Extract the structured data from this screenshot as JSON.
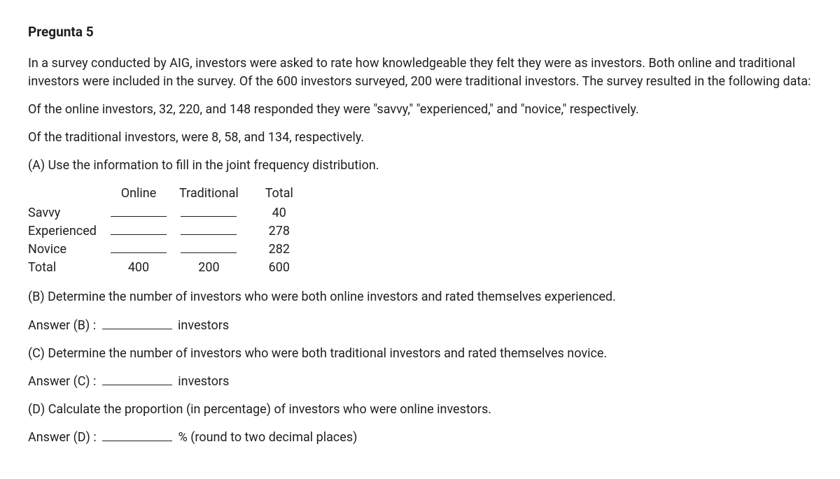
{
  "heading": "Pregunta 5",
  "p1": "In a survey conducted by AIG, investors were asked to rate how knowledgeable they felt they were as investors. Both online and traditional investors were included in the survey. Of the 600 investors surveyed, 200 were traditional investors. The survey resulted in the following data:",
  "p2": "Of the online investors, 32, 220, and 148 responded they were \"savvy,\" \"experienced,\" and \"novice,\" respectively.",
  "p3": "Of the traditional investors, were 8, 58, and 134, respectively.",
  "pA": "(A) Use the information to fill in the joint frequency distribution.",
  "table": {
    "cols": {
      "c1": "Online",
      "c2": "Traditional",
      "c3": "Total"
    },
    "rows": {
      "r1": {
        "label": "Savvy",
        "online": "",
        "trad": "",
        "total": "40"
      },
      "r2": {
        "label": "Experienced",
        "online": "",
        "trad": "",
        "total": "278"
      },
      "r3": {
        "label": "Novice",
        "online": "",
        "trad": "",
        "total": "282"
      },
      "r4": {
        "label": "Total",
        "online": "400",
        "trad": "200",
        "total": "600"
      }
    }
  },
  "pB": "(B) Determine the number of investors who were both online investors and rated themselves experienced.",
  "ansB_prefix": "Answer (B) :",
  "ansB_suffix": "investors",
  "pC": "(C) Determine the number of investors who were both traditional investors and rated themselves novice.",
  "ansC_prefix": "Answer (C) :",
  "ansC_suffix": "investors",
  "pD": "(D) Calculate the proportion (in percentage) of investors who were online investors.",
  "ansD_prefix": "Answer (D) :",
  "ansD_suffix": "% (round to two decimal places)"
}
